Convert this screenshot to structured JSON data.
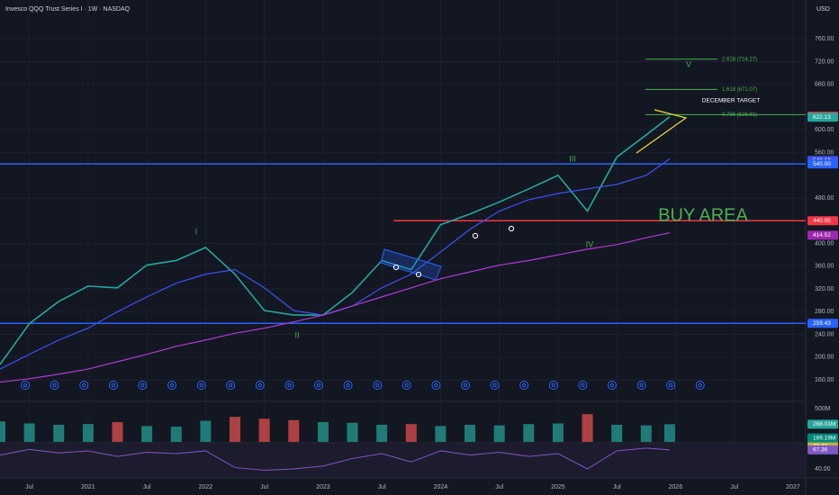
{
  "chart_data": {
    "type": "line",
    "title": "Invesco QQQ Trust Series I · 1W · NASDAQ",
    "currency": "USD",
    "x": [
      2020.25,
      2020.5,
      2020.75,
      2021.0,
      2021.25,
      2021.5,
      2021.75,
      2022.0,
      2022.25,
      2022.5,
      2022.75,
      2023.0,
      2023.25,
      2023.5,
      2023.75,
      2024.0,
      2024.25,
      2024.5,
      2024.75,
      2025.0,
      2025.25,
      2025.5,
      2025.75,
      2025.95
    ],
    "series": [
      {
        "color": "#26a69a",
        "values": [
          187,
          259,
          298,
          325,
          322,
          362,
          370,
          393,
          346,
          282,
          274,
          274,
          314,
          370,
          354,
          433,
          452,
          473,
          496,
          520,
          457,
          552,
          591,
          623
        ]
      },
      {
        "color": "#3f51f5",
        "values": [
          179,
          205,
          230,
          251,
          280,
          306,
          330,
          346,
          354,
          322,
          282,
          274,
          290,
          322,
          346,
          385,
          425,
          457,
          477,
          488,
          496,
          504,
          520,
          549
        ]
      },
      {
        "color": "#b03ad6",
        "values": [
          156,
          162,
          170,
          179,
          192,
          205,
          219,
          230,
          242,
          251,
          262,
          274,
          290,
          306,
          322,
          338,
          350,
          362,
          370,
          380,
          390,
          398,
          410,
          419
        ]
      }
    ],
    "volume": {
      "color_up": "#26a69a",
      "color_down": "#ef5350",
      "values": [
        310,
        280,
        260,
        270,
        300,
        240,
        230,
        320,
        380,
        350,
        330,
        300,
        290,
        260,
        270,
        240,
        260,
        250,
        270,
        280,
        420,
        260,
        250,
        268.01
      ],
      "ylim": [
        0,
        600
      ]
    },
    "rsi": {
      "color": "#7e57c2",
      "values": [
        60,
        68,
        63,
        66,
        58,
        64,
        62,
        66,
        42,
        38,
        40,
        44,
        55,
        62,
        50,
        66,
        60,
        64,
        58,
        62,
        40,
        66,
        70,
        67.36
      ],
      "ylim": [
        30,
        85
      ],
      "yticks": [
        {
          "value": 40,
          "label": "40.00"
        }
      ]
    },
    "xlim": [
      2020.25,
      2027.1
    ],
    "xticks": [
      {
        "value": 2020.5,
        "label": "Jul"
      },
      2021,
      {
        "value": 2021.5,
        "label": "Jul"
      },
      2022,
      {
        "value": 2022.5,
        "label": "Jul"
      },
      2023,
      {
        "value": 2023.5,
        "label": "Jul"
      },
      2024,
      {
        "value": 2024.5,
        "label": "Jul"
      },
      2025,
      {
        "value": 2025.5,
        "label": "Jul"
      },
      2026,
      {
        "value": 2026.5,
        "label": "Jul"
      },
      2027
    ],
    "ylim": [
      130,
      800
    ],
    "yticks": [
      {
        "value": 160,
        "label": "160.00"
      },
      {
        "value": 200,
        "label": "200.00"
      },
      {
        "value": 240,
        "label": "240.00"
      },
      {
        "value": 280,
        "label": "280.00"
      },
      {
        "value": 320,
        "label": "320.00"
      },
      {
        "value": 360,
        "label": "360.00"
      },
      {
        "value": 400,
        "label": "400.00"
      },
      {
        "value": 480,
        "label": "480.00"
      },
      {
        "value": 560,
        "label": "560.00"
      },
      {
        "value": 600,
        "label": "600.00"
      },
      {
        "value": 680,
        "label": "680.00"
      },
      {
        "value": 720,
        "label": "720.00"
      },
      {
        "value": 760,
        "label": "760.00"
      }
    ],
    "levels": [
      {
        "value": 540,
        "color": "#2962ff",
        "start": 2020.25
      },
      {
        "value": 259.43,
        "color": "#2962ff",
        "start": 2020.25
      },
      {
        "value": 440,
        "color": "#f23645",
        "start": 2023.6
      }
    ],
    "fib_levels": [
      {
        "value": 724.27,
        "label": "2.618 (724.27)"
      },
      {
        "value": 671.07,
        "label": "1.618 (671.07)"
      },
      {
        "value": 626.81,
        "label": "0.786 (626.81)"
      }
    ],
    "price_labels": [
      {
        "value": 623.89,
        "label": "623.89",
        "color": "#f23645"
      },
      {
        "value": 622.13,
        "label": "622.13",
        "color": "#26a69a"
      },
      {
        "value": 546.1,
        "label": "546.10",
        "color": "#3f51f5"
      },
      {
        "value": 540,
        "label": "540.00",
        "color": "#2962ff"
      },
      {
        "value": 440,
        "label": "440.00",
        "color": "#f23645"
      },
      {
        "value": 414.52,
        "label": "414.52",
        "color": "#9c27b0"
      },
      {
        "value": 259.43,
        "label": "259.43",
        "color": "#2962ff"
      }
    ],
    "volume_labels": [
      {
        "value": 500,
        "label": "500M"
      },
      {
        "value": 268.01,
        "label": "268.01M"
      },
      {
        "value": 169.19,
        "label": "169.19M"
      }
    ],
    "rsi_labels": [
      {
        "value": 72.42,
        "label": "72.42",
        "color": "#c9b13a"
      },
      {
        "value": 67.36,
        "label": "67.36",
        "color": "#7e57c2"
      }
    ],
    "annotations": [
      "I",
      "II",
      "III",
      "IV",
      "V",
      "DECEMBER TARGET",
      "BUY AREA"
    ]
  }
}
